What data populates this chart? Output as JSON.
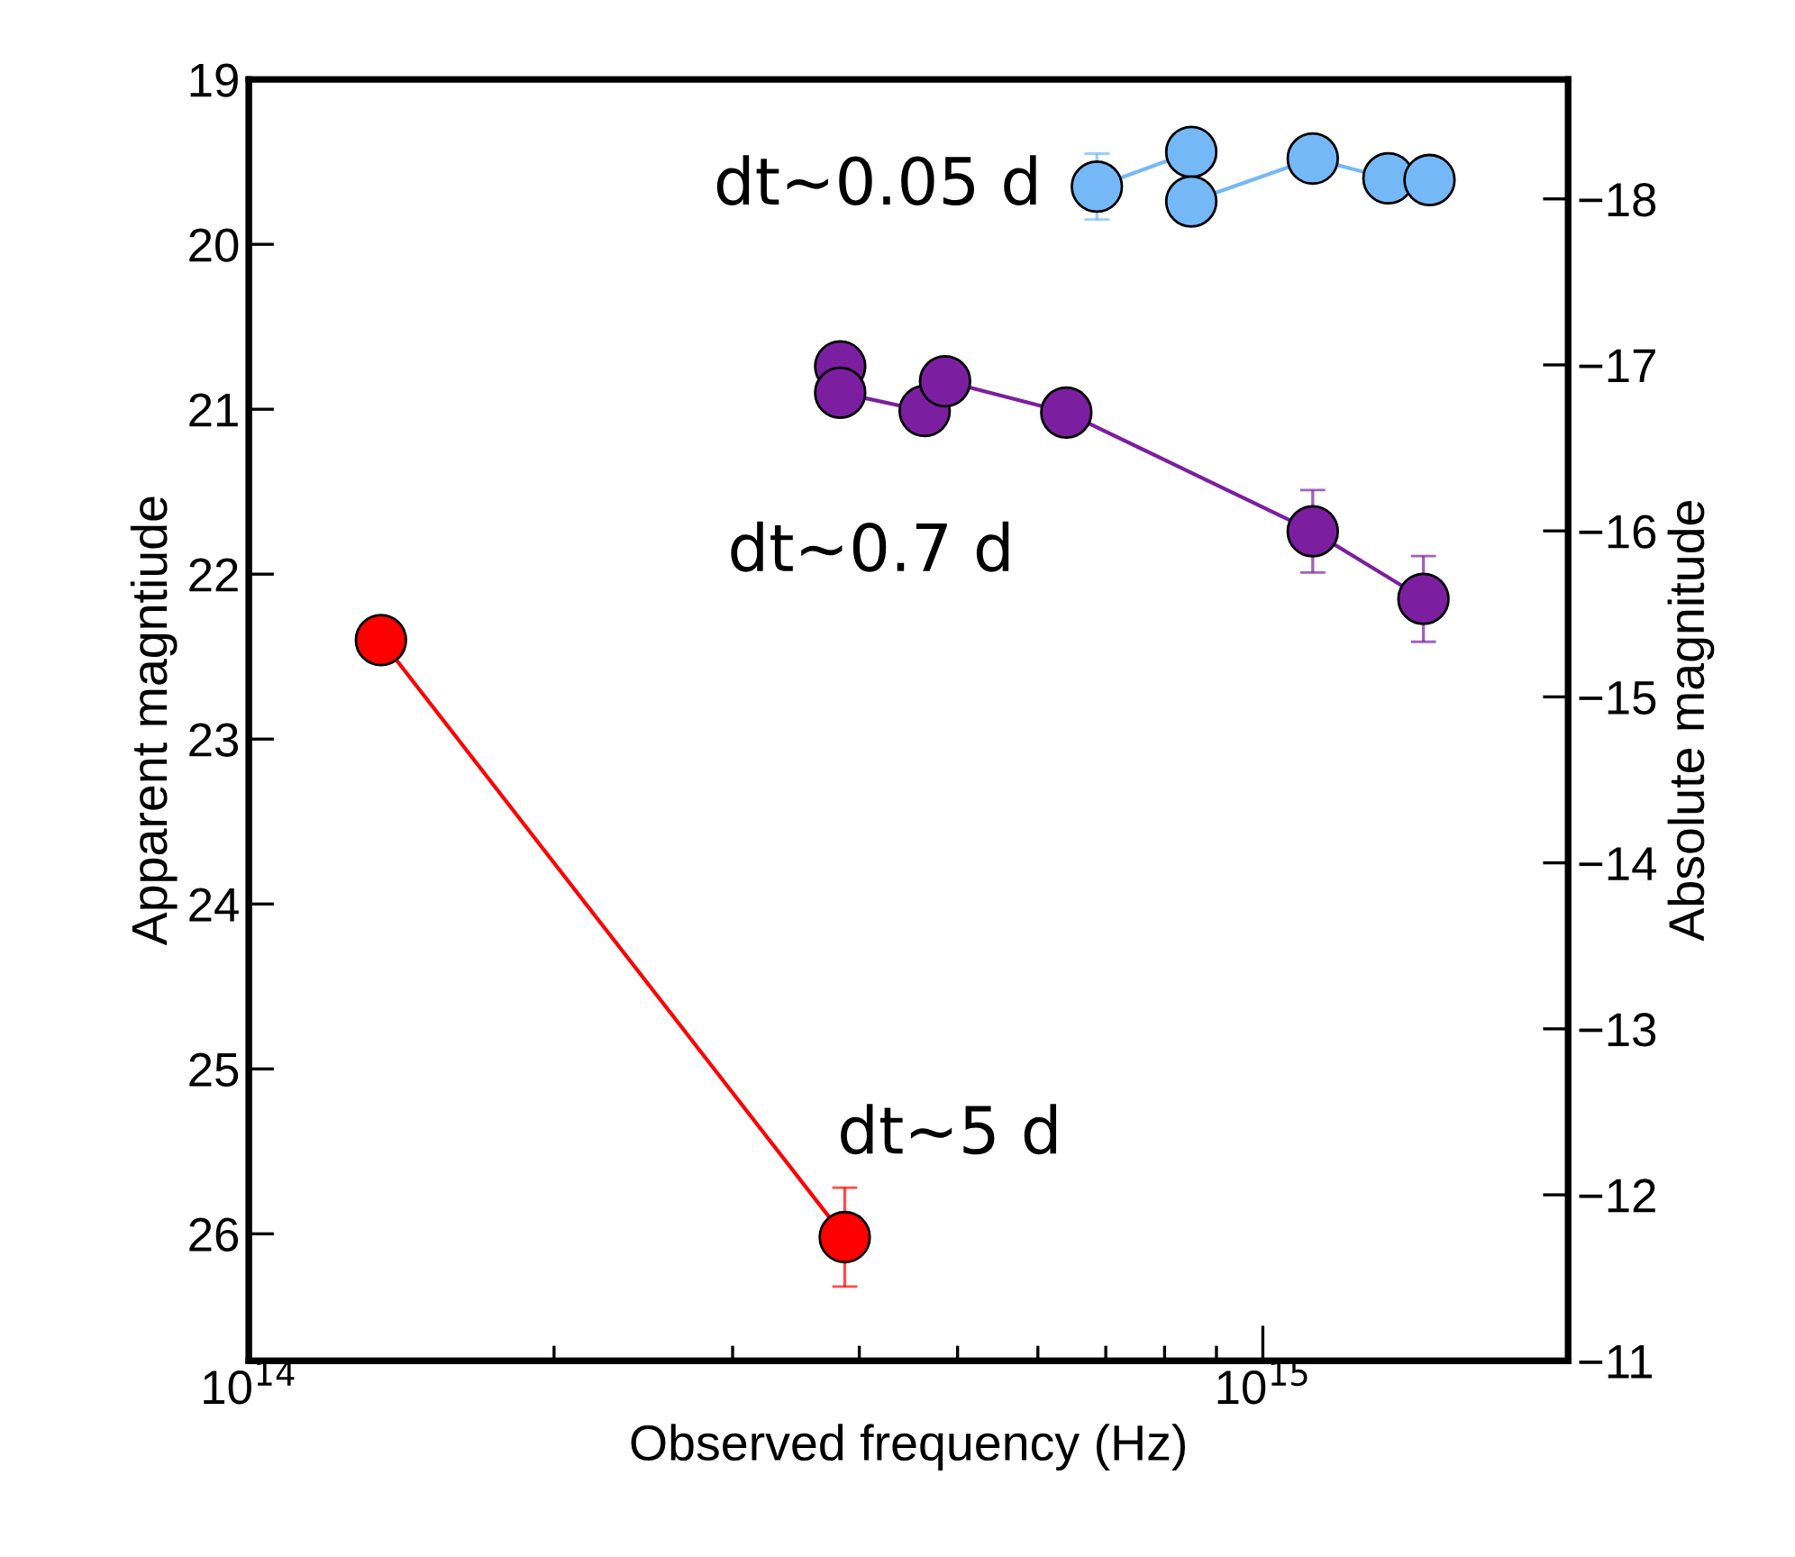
{
  "chart_data": {
    "type": "line",
    "xlabel": "Observed frequency (Hz)",
    "ylabel": "Apparent magntiude",
    "y2label": "Absolute magnitude",
    "log": "x",
    "marker": "circle",
    "line_style": "solid",
    "grid": false,
    "legend": false,
    "xlim": [
      100000000000000.0,
      2000000000000000.0
    ],
    "xticks": [
      {
        "value": 100000000000000.0,
        "label": "10$^{14}$"
      },
      {
        "value": 200000000000000.0,
        "label": null
      },
      {
        "value": 300000000000000.0,
        "label": null
      },
      {
        "value": 400000000000000.0,
        "label": null
      },
      {
        "value": 500000000000000.0,
        "label": null
      },
      {
        "value": 600000000000000.0,
        "label": null
      },
      {
        "value": 700000000000000.0,
        "label": null
      },
      {
        "value": 800000000000000.0,
        "label": null
      },
      {
        "value": 900000000000000.0,
        "label": null
      },
      {
        "value": 1000000000000000.0,
        "label": "10$^{15}$"
      }
    ],
    "ylim": [
      26.77,
      19
    ],
    "yticks": [
      19,
      20,
      21,
      22,
      23,
      24,
      25,
      26
    ],
    "y2lim": [
      -11,
      -18.72
    ],
    "y2ticks": [
      -18,
      -17,
      -16,
      -15,
      -14,
      -13,
      -12,
      -11
    ],
    "series": [
      {
        "name": "dt~0.05 d",
        "color": "#75b8f8",
        "x": [
          686000000000000.0,
          850000000000000.0,
          850000000000000.0,
          1120000000000000.0,
          1330000000000000.0,
          1460000000000000.0
        ],
        "values": [
          19.65,
          19.44,
          19.74,
          19.48,
          19.6,
          19.61
        ],
        "errors": [
          0.2,
          null,
          null,
          null,
          null,
          null
        ]
      },
      {
        "name": "dt~0.7 d",
        "color": "#7b1fa0",
        "x": [
          383000000000000.0,
          383000000000000.0,
          464000000000000.0,
          486000000000000.0,
          640000000000000.0,
          1120000000000000.0,
          1440000000000000.0
        ],
        "values": [
          20.74,
          20.9,
          21.01,
          20.83,
          21.02,
          21.74,
          22.15
        ],
        "errors": [
          null,
          null,
          null,
          null,
          null,
          0.25,
          0.26
        ]
      },
      {
        "name": "dt~5 d",
        "color": "#ff0000",
        "x": [
          135000000000000.0,
          387000000000000.0
        ],
        "values": [
          22.4,
          26.02
        ],
        "errors": [
          null,
          0.3
        ]
      }
    ]
  }
}
